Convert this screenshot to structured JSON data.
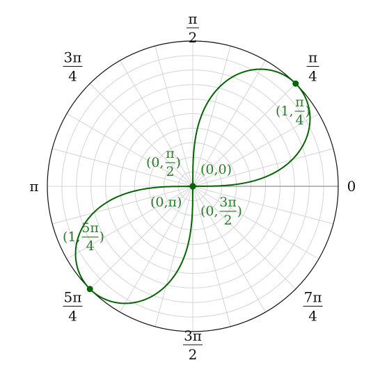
{
  "chart_data": {
    "type": "polar-line",
    "title": "",
    "equation": "r^2 = sin(2θ)",
    "r_range": [
      0,
      1
    ],
    "grid": true,
    "angle_labels": [
      {
        "angle_deg": 0,
        "num": "0",
        "den": ""
      },
      {
        "angle_deg": 45,
        "num": "π",
        "den": "4"
      },
      {
        "angle_deg": 90,
        "num": "π",
        "den": "2"
      },
      {
        "angle_deg": 135,
        "num": "3π",
        "den": "4"
      },
      {
        "angle_deg": 180,
        "num": "π",
        "den": ""
      },
      {
        "angle_deg": 225,
        "num": "5π",
        "den": "4"
      },
      {
        "angle_deg": 270,
        "num": "3π",
        "den": "2"
      },
      {
        "angle_deg": 315,
        "num": "7π",
        "den": "4"
      }
    ],
    "series": [
      {
        "color": "#006400",
        "points": [
          {
            "theta_deg": 0,
            "r": 0
          },
          {
            "theta_deg": 15,
            "r": 0.707
          },
          {
            "theta_deg": 30,
            "r": 0.931
          },
          {
            "theta_deg": 45,
            "r": 1
          },
          {
            "theta_deg": 60,
            "r": 0.931
          },
          {
            "theta_deg": 75,
            "r": 0.707
          },
          {
            "theta_deg": 90,
            "r": 0
          },
          {
            "theta_deg": 180,
            "r": 0
          },
          {
            "theta_deg": 195,
            "r": 0.707
          },
          {
            "theta_deg": 210,
            "r": 0.931
          },
          {
            "theta_deg": 225,
            "r": 1
          },
          {
            "theta_deg": 240,
            "r": 0.931
          },
          {
            "theta_deg": 255,
            "r": 0.707
          },
          {
            "theta_deg": 270,
            "r": 0
          }
        ]
      }
    ],
    "marked_points": [
      {
        "theta_deg": 45,
        "r": 1,
        "label_a": "(1,",
        "label_num": "π",
        "label_den": "4",
        "label_b": ")"
      },
      {
        "theta_deg": 225,
        "r": 1,
        "label_a": "(1,",
        "label_num": "5π",
        "label_den": "4",
        "label_b": ")"
      },
      {
        "theta_deg": 0,
        "r": 0,
        "label_a": "(0,0)",
        "label_num": "",
        "label_den": "",
        "label_b": ""
      },
      {
        "theta_deg": 90,
        "r": 0,
        "label_a": "(0,",
        "label_num": "π",
        "label_den": "2",
        "label_b": ")"
      },
      {
        "theta_deg": 180,
        "r": 0,
        "label_a": "(0,π)",
        "label_num": "",
        "label_den": "",
        "label_b": ""
      },
      {
        "theta_deg": 270,
        "r": 0,
        "label_a": "(0,",
        "label_num": "3π",
        "label_den": "2",
        "label_b": ")"
      }
    ]
  }
}
